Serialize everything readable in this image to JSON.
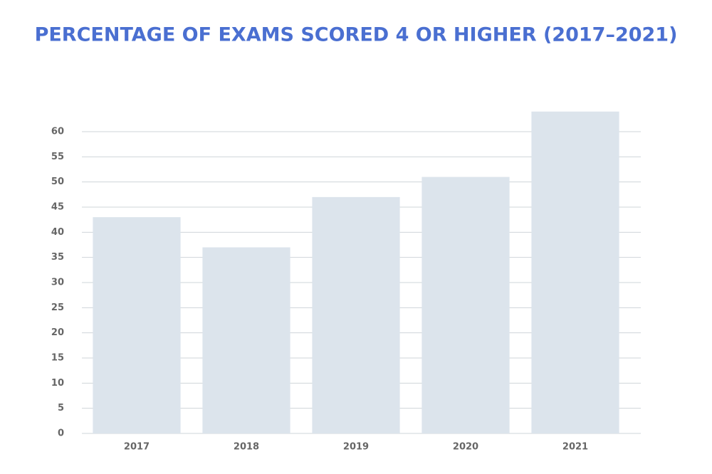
{
  "chart_data": {
    "type": "bar",
    "title": "PERCENTAGE OF EXAMS SCORED 4 OR HIGHER (2017–2021)",
    "categories": [
      "2017",
      "2018",
      "2019",
      "2020",
      "2021"
    ],
    "values": [
      43,
      37,
      47,
      51,
      64
    ],
    "color": "#dce4ec",
    "ylim": [
      0,
      65
    ],
    "yticks": [
      0,
      5,
      10,
      15,
      20,
      25,
      30,
      35,
      40,
      45,
      50,
      55,
      60
    ],
    "grid": true
  }
}
